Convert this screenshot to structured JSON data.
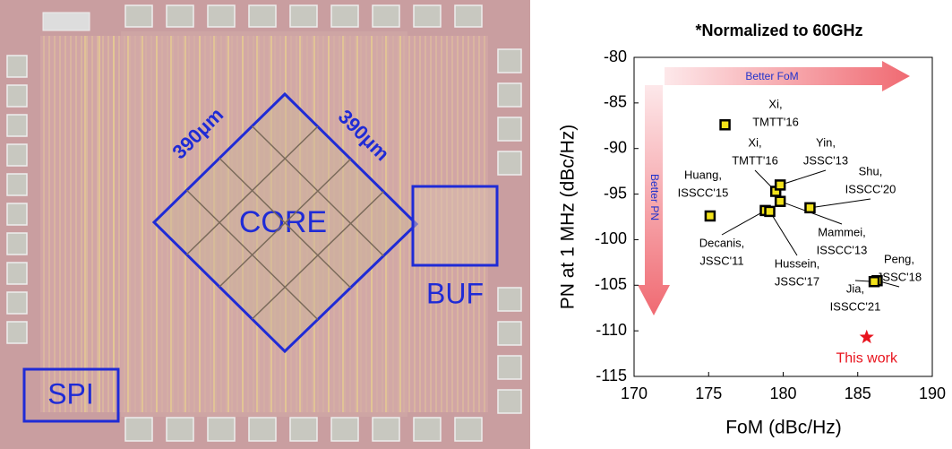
{
  "micrograph": {
    "labels": {
      "edge_left": "390μm",
      "edge_right": "390μm",
      "core": "CORE",
      "buffer": "BUF",
      "spi": "SPI"
    }
  },
  "chart_data": {
    "type": "scatter",
    "title": "*Normalized to 60GHz",
    "x_label": "FoM (dBc/Hz)",
    "y_label": "PN at 1 MHz (dBc/Hz)",
    "xlim": [
      170,
      190
    ],
    "xticks": [
      170,
      175,
      180,
      185,
      190
    ],
    "ylim": [
      -115,
      -80
    ],
    "yticks": [
      -80,
      -85,
      -90,
      -95,
      -100,
      -105,
      -110,
      -115
    ],
    "color": "#f2e21a",
    "x": [
      176.1,
      179.5,
      179.8,
      175.1,
      181.8,
      179.8,
      178.8,
      179.1,
      186.3,
      186.1
    ],
    "values": [
      -87.4,
      -94.7,
      -94.0,
      -97.4,
      -96.5,
      -95.8,
      -96.8,
      -96.9,
      -104.5,
      -104.6
    ],
    "point_labels": [
      [
        "Xi,",
        "TMTT'16"
      ],
      [
        "Xi,",
        "TMTT'16"
      ],
      [
        "Yin,",
        "JSSC'13"
      ],
      [
        "Huang,",
        "ISSCC'15"
      ],
      [
        "Shu,",
        "ISSCC'20"
      ],
      [
        "Mammei,",
        "ISSCC'13"
      ],
      [
        "Decanis,",
        "JSSC'11"
      ],
      [
        "Hussein,",
        "JSSC'17"
      ],
      [
        "Peng,",
        "JSSC'18"
      ],
      [
        "Jia,",
        "ISSCC'21"
      ]
    ],
    "this_work": {
      "x": 185.6,
      "y": -110.7,
      "label": "This work",
      "color": "#e8141e"
    },
    "annotations": {
      "better_fom": "Better FoM",
      "better_pn": "Better PN"
    }
  }
}
